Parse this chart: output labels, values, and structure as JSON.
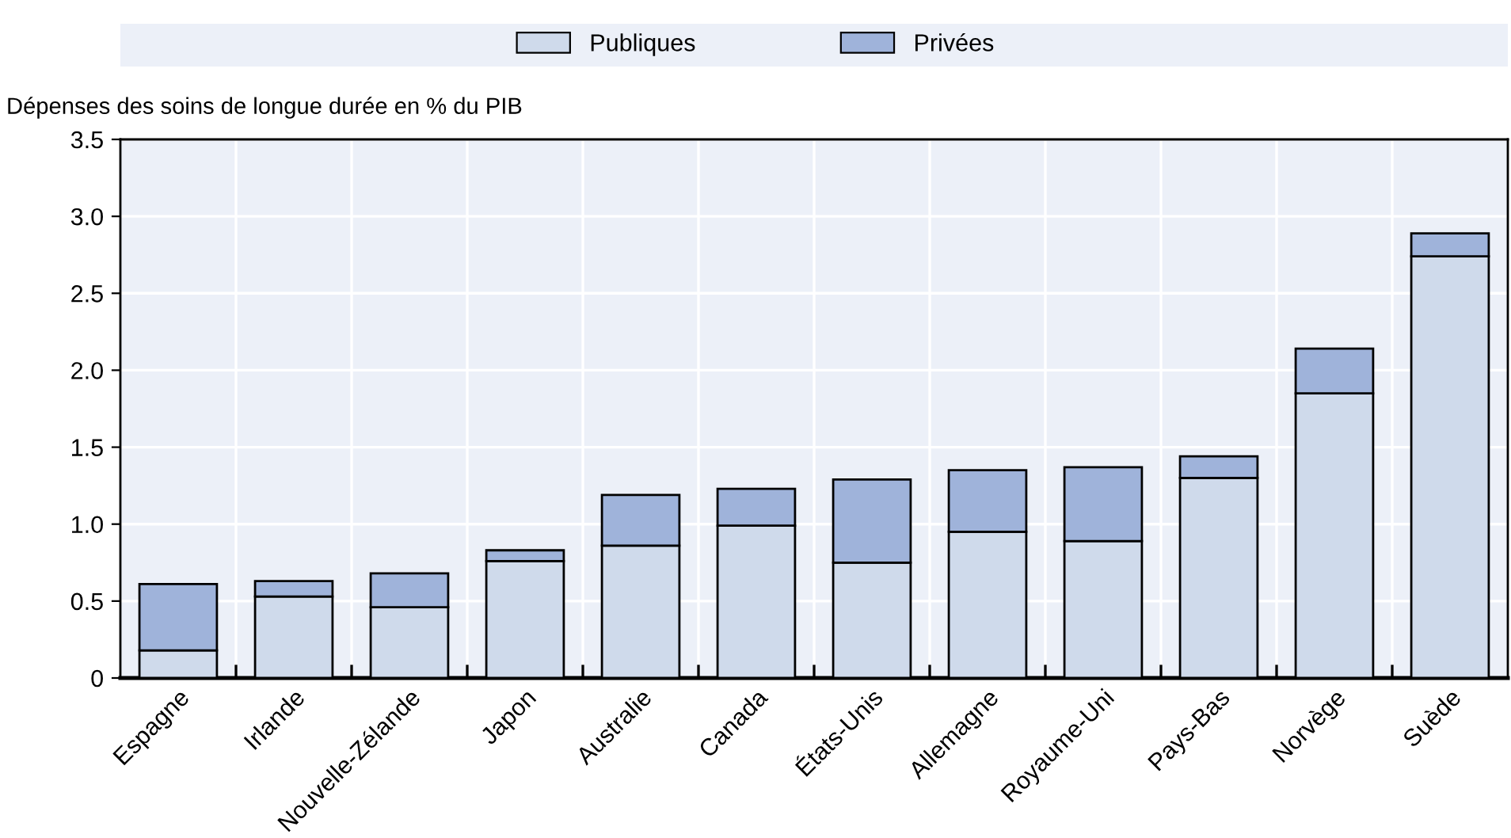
{
  "chart_data": {
    "type": "bar",
    "ylabel": "Dépenses des soins de longue durée en % du PIB",
    "categories": [
      "Espagne",
      "Irlande",
      "Nouvelle-Zélande",
      "Japon",
      "Australie",
      "Canada",
      "États-Unis",
      "Allemagne",
      "Royaume-Uni",
      "Pays-Bas",
      "Norvège",
      "Suède"
    ],
    "series": [
      {
        "name": "Publiques",
        "color": "#cfdaeb",
        "values": [
          0.18,
          0.53,
          0.46,
          0.76,
          0.86,
          0.99,
          0.75,
          0.95,
          0.89,
          1.3,
          1.85,
          2.74
        ]
      },
      {
        "name": "Privées",
        "color": "#9fb3da",
        "values": [
          0.43,
          0.1,
          0.22,
          0.07,
          0.33,
          0.24,
          0.54,
          0.4,
          0.48,
          0.14,
          0.29,
          0.15
        ]
      }
    ],
    "stacked": true,
    "ylim": [
      0,
      3.5
    ],
    "yticks": [
      0,
      0.5,
      {
        "value": 1,
        "label": "1.0"
      },
      1.5,
      {
        "value": 2,
        "label": "2.0"
      },
      2.5,
      {
        "value": 3,
        "label": "3.0"
      },
      3.5
    ],
    "grid": true,
    "legend": "top"
  }
}
